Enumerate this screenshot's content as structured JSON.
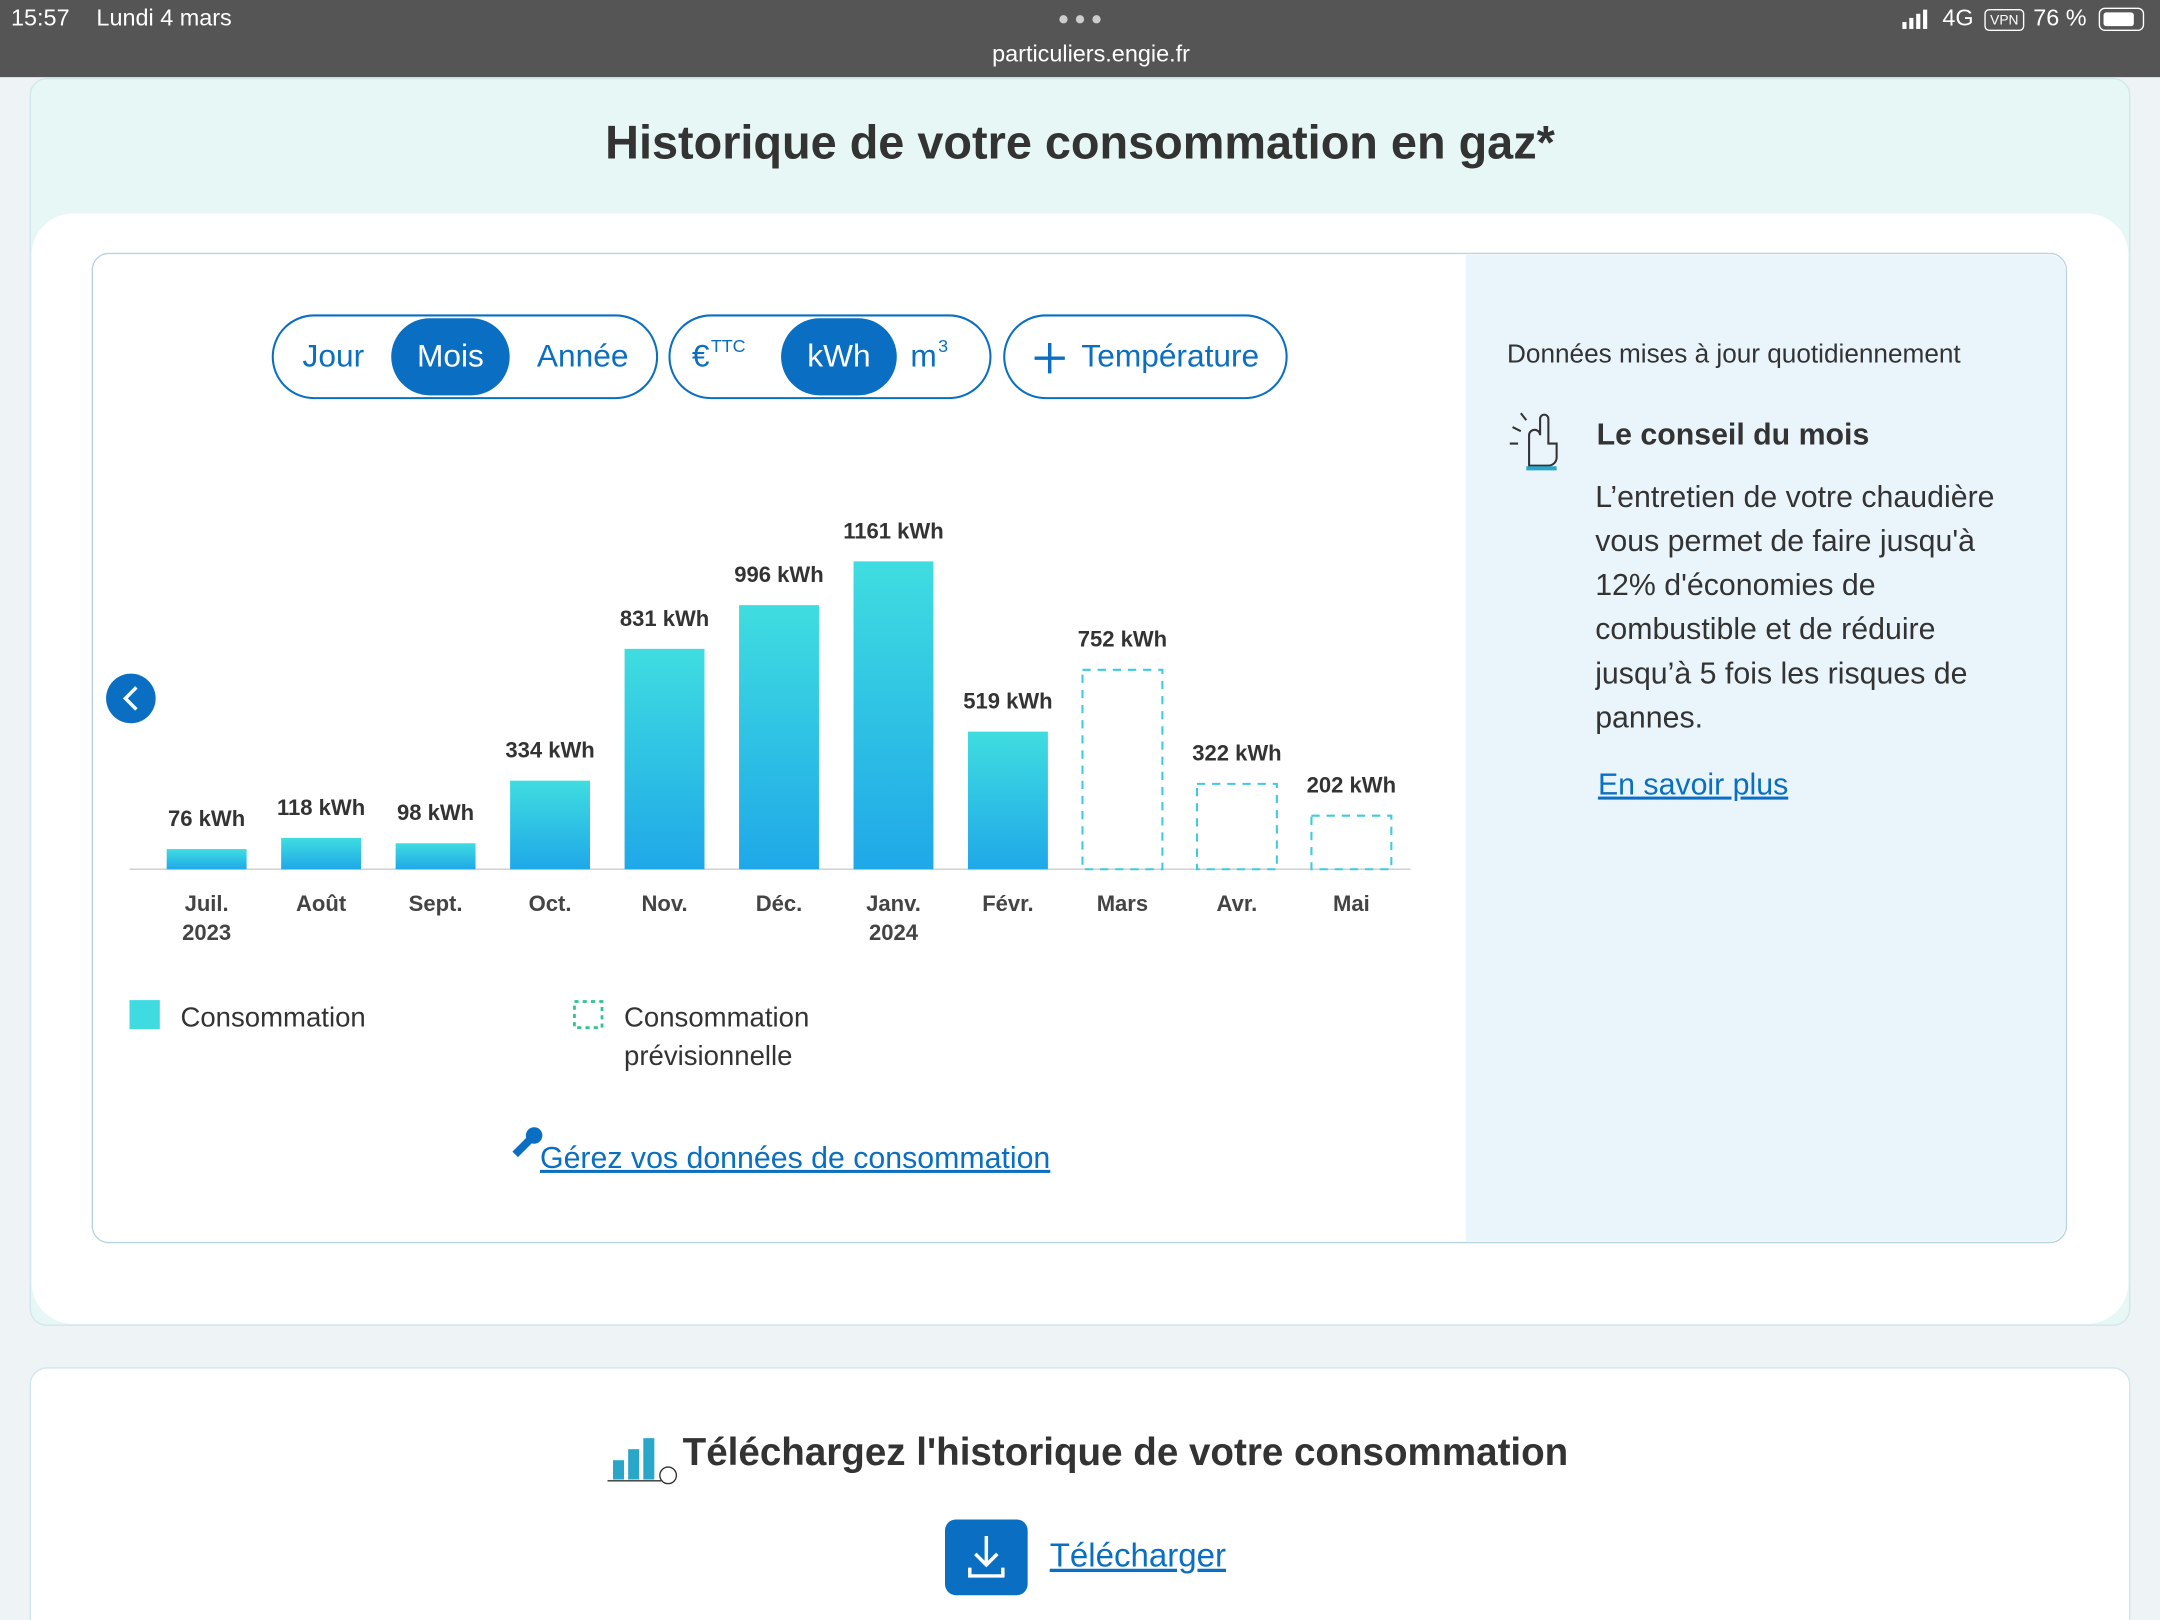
{
  "status_bar": {
    "time": "15:57",
    "date": "Lundi 4 mars",
    "url": "particuliers.engie.fr",
    "network": "4G",
    "vpn": "VPN",
    "battery": "76 %"
  },
  "header": {
    "title": "Historique de votre consommation en gaz*"
  },
  "controls": {
    "periods": [
      "Jour",
      "Mois",
      "Année"
    ],
    "selected_period": 1,
    "units": [
      {
        "symbol": "€",
        "sup": "TTC"
      },
      {
        "symbol": "kWh"
      },
      {
        "symbol": "m",
        "sup": "3"
      }
    ],
    "selected_unit": 1,
    "temperature": "Température"
  },
  "chart_data": {
    "type": "bar",
    "categories": [
      "Juil. 2023",
      "Août",
      "Sept.",
      "Oct.",
      "Nov.",
      "Déc.",
      "Janv. 2024",
      "Févr.",
      "Mars",
      "Avr.",
      "Mai"
    ],
    "series": [
      {
        "name": "Consommation",
        "color": "#3fdbe0",
        "style": "solid",
        "values": [
          76,
          118,
          98,
          334,
          831,
          996,
          1161,
          519,
          null,
          null,
          null
        ],
        "value_labels": [
          "76 kWh",
          "118 kWh",
          "98 kWh",
          "334 kWh",
          "831 kWh",
          "996 kWh",
          "1161 kWh",
          "519 kWh",
          null,
          null,
          null
        ]
      },
      {
        "name": "Consommation prévisionnelle",
        "color": "#3ccbe0",
        "legend_color": "#2fc48a",
        "style": "dashed",
        "values": [
          null,
          null,
          null,
          null,
          null,
          null,
          null,
          null,
          752,
          322,
          202
        ],
        "value_labels": [
          null,
          null,
          null,
          null,
          null,
          null,
          null,
          null,
          "752 kWh",
          "322 kWh",
          "202 kWh"
        ]
      }
    ]
  },
  "links": {
    "manage": "Gérez vos données de consommation"
  },
  "side_panel": {
    "update_note": "Données mises à jour quotidiennement",
    "tip_title": "Le conseil du mois",
    "tip_text": "L’entretien de votre chaudière vous permet de faire jusqu'à 12% d'économies de combustible et de réduire jusqu’à 5 fois les risques de pannes.",
    "more": "En savoir plus"
  },
  "download": {
    "title": "Téléchargez l'historique de votre consommation",
    "button": "Télécharger"
  }
}
